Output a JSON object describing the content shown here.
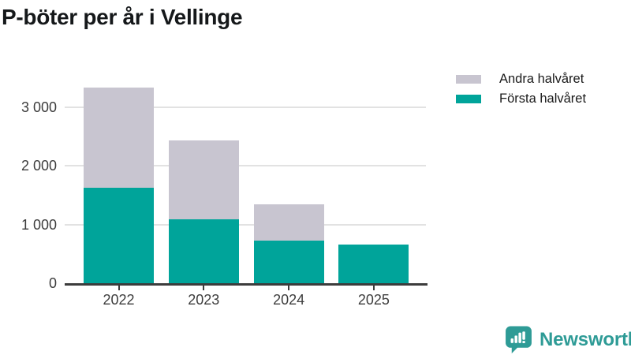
{
  "title": "P-böter per år i Vellinge",
  "legend": [
    {
      "label": "Andra halvåret",
      "color": "#c8c5d0",
      "icon": "legend-swatch-gray"
    },
    {
      "label": "Första halvåret",
      "color": "#00a49a",
      "icon": "legend-swatch-teal"
    }
  ],
  "chart_data": {
    "type": "bar",
    "stacked": true,
    "title": "P-böter per år i Vellinge",
    "categories": [
      "2022",
      "2023",
      "2024",
      "2025"
    ],
    "series": [
      {
        "name": "Första halvåret",
        "color": "#00a49a",
        "values": [
          1630,
          1090,
          725,
          665
        ]
      },
      {
        "name": "Andra halvåret",
        "color": "#c8c5d0",
        "values": [
          1705,
          1345,
          625,
          0
        ]
      }
    ],
    "totals": [
      3335,
      2435,
      1350,
      665
    ],
    "xlabel": "",
    "ylabel": "",
    "ylim": [
      0,
      3680
    ],
    "yticks": [
      {
        "value": 0,
        "label": "0"
      },
      {
        "value": 1000,
        "label": "1 000"
      },
      {
        "value": 2000,
        "label": "2 000"
      },
      {
        "value": 3000,
        "label": "3 000"
      }
    ],
    "grid": true,
    "legend_position": "top-right"
  },
  "colors": {
    "axis": "#3c3c3c",
    "grid": "#e2e2e2",
    "tick_text": "#3d3d3d",
    "brand_teal": "#2e9b96"
  },
  "branding": {
    "logo_text": "Newsworthy",
    "logo_icon": "bar-chart-speech-bubble-icon"
  }
}
